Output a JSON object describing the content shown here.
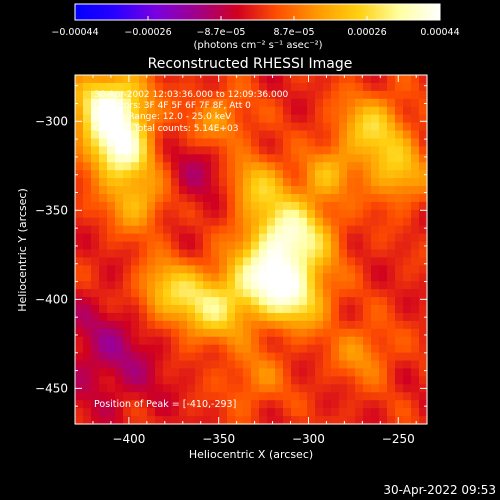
{
  "chart_data": {
    "type": "heatmap",
    "title": "Reconstructed RHESSI Image",
    "xlabel": "Heliocentric X (arcsec)",
    "ylabel": "Heliocentric Y (arcsec)",
    "xlim": [
      -430,
      -234
    ],
    "ylim": [
      -470,
      -274
    ],
    "x_ticks": [
      -400,
      -350,
      -300,
      -250
    ],
    "y_ticks": [
      -450,
      -400,
      -350,
      -300
    ],
    "x_tick_labels": [
      "−400",
      "−350",
      "−300",
      "−250"
    ],
    "y_tick_labels": [
      "−450",
      "−400",
      "−350",
      "−300"
    ],
    "colorbar": {
      "range": [
        -0.00044,
        0.00044
      ],
      "tick_labels": [
        "−0.00044",
        "−0.00026",
        "−8.7e−05",
        "8.7e−05",
        "0.00026",
        "0.00044"
      ],
      "unit_label": "(photons cm⁻² s⁻¹ asec⁻²)",
      "colormap": [
        "#0000ff",
        "#2a00ff",
        "#7a00e0",
        "#a0008a",
        "#d00020",
        "#ff5000",
        "#ff9a00",
        "#ffd010",
        "#ffffa0",
        "#ffffff"
      ]
    },
    "info_lines": [
      "30-Apr-2002 12:03:36.000 to 12:09:36.000",
      "Detectors: 3F 4F 5F 6F 7F 8F, Att 0",
      "Energy Range: 12.0 - 25.0 keV",
      "Clean     Total counts: 5.14E+03"
    ],
    "peak_label": "Position of Peak = [-410,-293]",
    "peak": [
      -410,
      -293
    ],
    "sources": [
      {
        "x": -410,
        "y": -293,
        "amp": 1.0,
        "r": 14
      },
      {
        "x": -405,
        "y": -318,
        "amp": 0.75,
        "r": 12
      },
      {
        "x": -310,
        "y": -365,
        "amp": 0.85,
        "r": 16
      },
      {
        "x": -325,
        "y": -390,
        "amp": 0.7,
        "r": 14
      },
      {
        "x": -305,
        "y": -400,
        "amp": 0.55,
        "r": 12
      },
      {
        "x": -355,
        "y": -405,
        "amp": 0.6,
        "r": 14
      },
      {
        "x": -380,
        "y": -395,
        "amp": 0.5,
        "r": 12
      },
      {
        "x": -395,
        "y": -345,
        "amp": 0.45,
        "r": 12
      },
      {
        "x": -330,
        "y": -335,
        "amp": 0.45,
        "r": 12
      },
      {
        "x": -265,
        "y": -305,
        "amp": 0.55,
        "r": 14
      },
      {
        "x": -250,
        "y": -330,
        "amp": 0.45,
        "r": 12
      },
      {
        "x": -290,
        "y": -330,
        "amp": 0.35,
        "r": 10
      },
      {
        "x": -350,
        "y": -300,
        "amp": 0.35,
        "r": 12
      },
      {
        "x": -270,
        "y": -430,
        "amp": 0.3,
        "r": 12
      },
      {
        "x": -330,
        "y": -445,
        "amp": 0.25,
        "r": 12
      },
      {
        "x": -410,
        "y": -430,
        "amp": -0.25,
        "r": 22
      },
      {
        "x": -360,
        "y": -330,
        "amp": -0.2,
        "r": 16
      }
    ]
  },
  "footer": {
    "timestamp": "30-Apr-2022 09:53"
  }
}
